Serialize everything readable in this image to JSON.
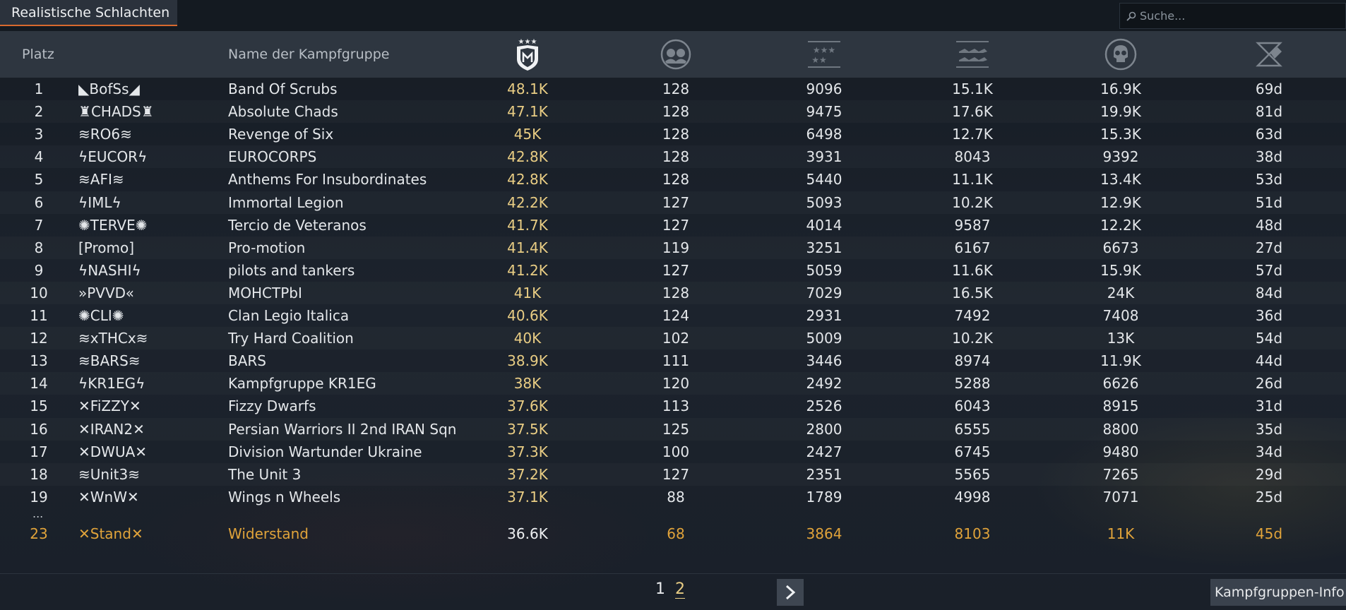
{
  "tab": {
    "label": "Realistische Schlachten"
  },
  "search": {
    "placeholder": "Suche..."
  },
  "columns": {
    "rank": "Platz",
    "name": "Name der Kampfgruppe",
    "icons": [
      "rating-icon",
      "players-icon",
      "activity-icon",
      "air-kills-icon",
      "ground-kills-icon",
      "days-icon"
    ]
  },
  "rows": [
    {
      "rank": "1",
      "tag": "BofSs",
      "name": "Band Of Scrubs",
      "rating": "48.1K",
      "players": "128",
      "activity": "9096",
      "air_kills": "15.1K",
      "ground_kills": "16.9K",
      "days": "69d"
    },
    {
      "rank": "2",
      "tag": "CHADS",
      "name": "Absolute Chads",
      "rating": "47.1K",
      "players": "128",
      "activity": "9475",
      "air_kills": "17.6K",
      "ground_kills": "19.9K",
      "days": "81d"
    },
    {
      "rank": "3",
      "tag": "RO6",
      "name": "Revenge of Six",
      "rating": "45K",
      "players": "128",
      "activity": "6498",
      "air_kills": "12.7K",
      "ground_kills": "15.3K",
      "days": "63d"
    },
    {
      "rank": "4",
      "tag": "EUCOR",
      "name": "EUROCORPS",
      "rating": "42.8K",
      "players": "128",
      "activity": "3931",
      "air_kills": "8043",
      "ground_kills": "9392",
      "days": "38d"
    },
    {
      "rank": "5",
      "tag": "AFI",
      "name": "Anthems For Insubordinates",
      "rating": "42.8K",
      "players": "128",
      "activity": "5440",
      "air_kills": "11.1K",
      "ground_kills": "13.4K",
      "days": "53d"
    },
    {
      "rank": "6",
      "tag": "IML",
      "name": "Immortal Legion",
      "rating": "42.2K",
      "players": "127",
      "activity": "5093",
      "air_kills": "10.2K",
      "ground_kills": "12.9K",
      "days": "51d"
    },
    {
      "rank": "7",
      "tag": "TERVE",
      "name": "Tercio de Veteranos",
      "rating": "41.7K",
      "players": "127",
      "activity": "4014",
      "air_kills": "9587",
      "ground_kills": "12.2K",
      "days": "48d"
    },
    {
      "rank": "8",
      "tag": "[Promo]",
      "name": "Pro-motion",
      "rating": "41.4K",
      "players": "119",
      "activity": "3251",
      "air_kills": "6167",
      "ground_kills": "6673",
      "days": "27d"
    },
    {
      "rank": "9",
      "tag": "NASHI",
      "name": "pilots and tankers",
      "rating": "41.2K",
      "players": "127",
      "activity": "5059",
      "air_kills": "11.6K",
      "ground_kills": "15.9K",
      "days": "57d"
    },
    {
      "rank": "10",
      "tag": "PVVD",
      "name": "MOHCTPbI",
      "rating": "41K",
      "players": "128",
      "activity": "7029",
      "air_kills": "16.5K",
      "ground_kills": "24K",
      "days": "84d"
    },
    {
      "rank": "11",
      "tag": "CLI",
      "name": "Clan Legio Italica",
      "rating": "40.6K",
      "players": "124",
      "activity": "2931",
      "air_kills": "7492",
      "ground_kills": "7408",
      "days": "36d"
    },
    {
      "rank": "12",
      "tag": "xTHCx",
      "name": "Try Hard Coalition",
      "rating": "40K",
      "players": "102",
      "activity": "5009",
      "air_kills": "10.2K",
      "ground_kills": "13K",
      "days": "54d"
    },
    {
      "rank": "13",
      "tag": "BARS",
      "name": "BARS",
      "rating": "38.9K",
      "players": "111",
      "activity": "3446",
      "air_kills": "8974",
      "ground_kills": "11.9K",
      "days": "44d"
    },
    {
      "rank": "14",
      "tag": "KR1EG",
      "name": "Kampfgruppe KR1EG",
      "rating": "38K",
      "players": "120",
      "activity": "2492",
      "air_kills": "5288",
      "ground_kills": "6626",
      "days": "26d"
    },
    {
      "rank": "15",
      "tag": "FiZZY",
      "name": "Fizzy Dwarfs",
      "rating": "37.6K",
      "players": "113",
      "activity": "2526",
      "air_kills": "6043",
      "ground_kills": "8915",
      "days": "31d"
    },
    {
      "rank": "16",
      "tag": "IRAN2",
      "name": "Persian Warriors II 2nd IRAN Sqn",
      "rating": "37.5K",
      "players": "125",
      "activity": "2800",
      "air_kills": "6555",
      "ground_kills": "8800",
      "days": "35d"
    },
    {
      "rank": "17",
      "tag": "DWUA",
      "name": "Division Wartunder Ukraine",
      "rating": "37.3K",
      "players": "100",
      "activity": "2427",
      "air_kills": "6745",
      "ground_kills": "9480",
      "days": "34d"
    },
    {
      "rank": "18",
      "tag": "Unit3",
      "name": "The Unit 3",
      "rating": "37.2K",
      "players": "127",
      "activity": "2351",
      "air_kills": "5565",
      "ground_kills": "7265",
      "days": "29d"
    },
    {
      "rank": "19",
      "tag": "WnW",
      "name": "Wings n Wheels",
      "rating": "37.1K",
      "players": "88",
      "activity": "1789",
      "air_kills": "4998",
      "ground_kills": "7071",
      "days": "25d"
    }
  ],
  "gap_marker": "...",
  "own_row": {
    "rank": "23",
    "tag": "Stand",
    "name": "Widerstand",
    "rating": "36.6K",
    "players": "68",
    "activity": "3864",
    "air_kills": "8103",
    "ground_kills": "11K",
    "days": "45d"
  },
  "pagination": {
    "page1": "1",
    "page2": "2"
  },
  "info_button": "Kampfgruppen-Info",
  "colors": {
    "accent": "#d8692e",
    "rating": "#e9cd84",
    "own_row": "#e0a33a"
  }
}
